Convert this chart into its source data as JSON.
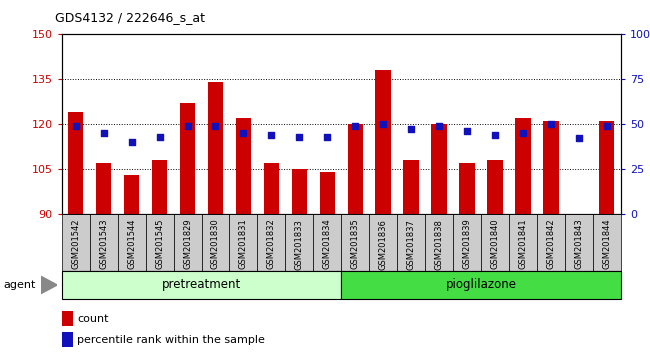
{
  "title": "GDS4132 / 222646_s_at",
  "samples": [
    "GSM201542",
    "GSM201543",
    "GSM201544",
    "GSM201545",
    "GSM201829",
    "GSM201830",
    "GSM201831",
    "GSM201832",
    "GSM201833",
    "GSM201834",
    "GSM201835",
    "GSM201836",
    "GSM201837",
    "GSM201838",
    "GSM201839",
    "GSM201840",
    "GSM201841",
    "GSM201842",
    "GSM201843",
    "GSM201844"
  ],
  "counts": [
    124,
    107,
    103,
    108,
    127,
    134,
    122,
    107,
    105,
    104,
    120,
    138,
    108,
    120,
    107,
    108,
    122,
    121,
    90,
    121
  ],
  "percentile_ranks": [
    49,
    45,
    40,
    43,
    49,
    49,
    45,
    44,
    43,
    43,
    49,
    50,
    47,
    49,
    46,
    44,
    45,
    50,
    42,
    49
  ],
  "group1_label": "pretreatment",
  "group2_label": "pioglilazone",
  "group1_count": 10,
  "group2_count": 10,
  "agent_label": "agent",
  "ylim_left": [
    90,
    150
  ],
  "ylim_right": [
    0,
    100
  ],
  "yticks_left": [
    90,
    105,
    120,
    135,
    150
  ],
  "yticks_right": [
    0,
    25,
    50,
    75,
    100
  ],
  "bar_color": "#cc0000",
  "dot_color": "#1111bb",
  "bar_bottom": 90,
  "group1_bg": "#ccffcc",
  "group2_bg": "#44dd44",
  "tick_bg": "#cccccc",
  "legend_count_label": "count",
  "legend_pct_label": "percentile rank within the sample"
}
